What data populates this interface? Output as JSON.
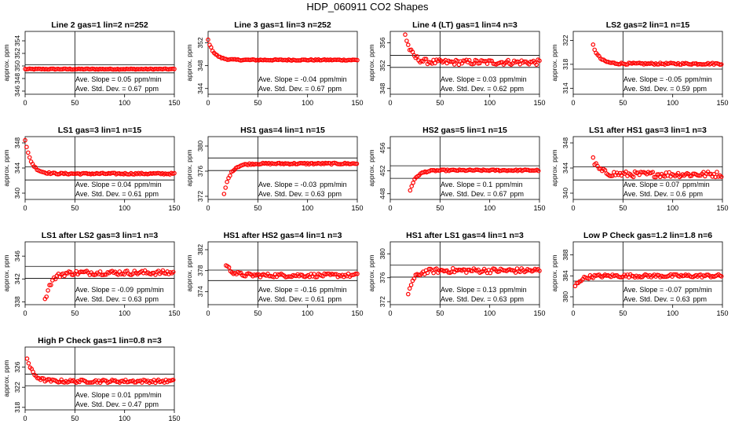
{
  "title": "HDP_060911  CO2 Shapes",
  "colors": {
    "points": "#ff0000",
    "axes": "#000000"
  },
  "chart_data": [
    {
      "type": "scatter",
      "title": "Line 2 gas=1 lin=2 n=252",
      "ylabel": "approx. ppm",
      "xlim": [
        0,
        150
      ],
      "ylim": [
        345.5,
        355.5
      ],
      "yticks": [
        346,
        348,
        350,
        352,
        354
      ],
      "xticks": [
        0,
        50,
        100,
        150
      ],
      "vline": 50,
      "hlines": [
        350.2,
        348.9
      ],
      "slope_label": "Ave. Slope = ",
      "slope": "0.05",
      "slope_unit": "ppm/min",
      "std_label": "Ave. Std. Dev. = ",
      "std": "0.67",
      "std_unit": "ppm",
      "x_start": 0,
      "series": [
        {
          "name": "",
          "start": 349.5,
          "plateau": 349.5,
          "noise": 0.07
        }
      ]
    },
    {
      "type": "scatter",
      "title": "Line 3 gas=1 lin=3 n=252",
      "ylabel": "approx. ppm",
      "xlim": [
        0,
        150
      ],
      "ylim": [
        343,
        354
      ],
      "yticks": [
        344,
        348,
        352
      ],
      "xticks": [
        0,
        50,
        100,
        150
      ],
      "vline": 50,
      "hlines": [],
      "slope_label": "Ave. Slope = ",
      "slope": "-0.04",
      "slope_unit": "ppm/min",
      "std_label": "Ave. Std. Dev. = ",
      "std": "0.67",
      "std_unit": "ppm",
      "x_start": 0,
      "series": [
        {
          "name": "",
          "start": 352.5,
          "plateau": 349.0,
          "noise": 0.1
        }
      ]
    },
    {
      "type": "scatter",
      "title": "Line 4 (LT) gas=1 lin=4 n=3",
      "ylabel": "approx. ppm",
      "xlim": [
        0,
        150
      ],
      "ylim": [
        347,
        358
      ],
      "yticks": [
        348,
        352,
        356
      ],
      "xticks": [
        0,
        50,
        100,
        150
      ],
      "vline": 50,
      "hlines": [
        353.8,
        351.7
      ],
      "slope_label": "Ave. Slope = ",
      "slope": "0.03",
      "slope_unit": "ppm/min",
      "std_label": "Ave. Std. Dev. = ",
      "std": "0.62",
      "std_unit": "ppm",
      "x_start": 15,
      "series": [
        {
          "name": "",
          "start": 357.5,
          "plateau": 352.6,
          "noise": 0.45
        }
      ]
    },
    {
      "type": "scatter",
      "title": "LS2 gas=2 lin=1 n=15",
      "ylabel": "approx. ppm",
      "xlim": [
        0,
        150
      ],
      "ylim": [
        313,
        323.5
      ],
      "yticks": [
        314,
        318,
        322
      ],
      "xticks": [
        0,
        50,
        100,
        150
      ],
      "vline": 50,
      "hlines": [
        317.2
      ],
      "slope_label": "Ave. Slope = ",
      "slope": "-0.05",
      "slope_unit": "ppm/min",
      "std_label": "Ave. Std. Dev. = ",
      "std": "0.59",
      "std_unit": "ppm",
      "x_start": 20,
      "series": [
        {
          "name": "",
          "start": 321.2,
          "plateau": 318.1,
          "noise": 0.15
        }
      ]
    },
    {
      "type": "scatter",
      "title": "LS1 gas=3 lin=1 n=15",
      "ylabel": "approx. ppm",
      "xlim": [
        0,
        150
      ],
      "ylim": [
        339,
        349
      ],
      "yticks": [
        340,
        344,
        348
      ],
      "xticks": [
        0,
        50,
        100,
        150
      ],
      "vline": 50,
      "hlines": [
        344.2,
        342.1
      ],
      "slope_label": "Ave. Slope = ",
      "slope": "0.04",
      "slope_unit": "ppm/min",
      "std_label": "Ave. Std. Dev. = ",
      "std": "0.61",
      "std_unit": "ppm",
      "x_start": 0,
      "series": [
        {
          "name": "",
          "start": 348.5,
          "plateau": 343.1,
          "noise": 0.12
        }
      ]
    },
    {
      "type": "scatter",
      "title": "HS1 gas=4 lin=1 n=15",
      "ylabel": "approx. ppm",
      "xlim": [
        0,
        150
      ],
      "ylim": [
        371.5,
        381.5
      ],
      "yticks": [
        372,
        376,
        380
      ],
      "xticks": [
        0,
        50,
        100,
        150
      ],
      "vline": 50,
      "hlines": [
        378.1,
        376.1
      ],
      "slope_label": "Ave. Slope = ",
      "slope": "-0.03",
      "slope_unit": "ppm/min",
      "std_label": "Ave. Std. Dev. = ",
      "std": "0.63",
      "std_unit": "ppm",
      "x_start": 16,
      "series": [
        {
          "name": "",
          "start": 372.3,
          "plateau": 377.2,
          "noise": 0.12
        }
      ]
    },
    {
      "type": "scatter",
      "title": "HS2 gas=5 lin=1 n=15",
      "ylabel": "approx. ppm",
      "xlim": [
        0,
        150
      ],
      "ylim": [
        447,
        458
      ],
      "yticks": [
        448,
        452,
        456
      ],
      "xticks": [
        0,
        50,
        100,
        150
      ],
      "vline": 50,
      "hlines": [
        452.9,
        450.7
      ],
      "slope_label": "Ave. Slope = ",
      "slope": "0.1",
      "slope_unit": "ppm/min",
      "std_label": "Ave. Std. Dev. = ",
      "std": "0.67",
      "std_unit": "ppm",
      "x_start": 20,
      "series": [
        {
          "name": "",
          "start": 448.6,
          "plateau": 452.1,
          "noise": 0.12
        }
      ]
    },
    {
      "type": "scatter",
      "title": "LS1 after HS1 gas=3 lin=1 n=3",
      "ylabel": "approx. ppm",
      "xlim": [
        0,
        150
      ],
      "ylim": [
        339,
        349
      ],
      "yticks": [
        340,
        344,
        348
      ],
      "xticks": [
        0,
        50,
        100,
        150
      ],
      "vline": 50,
      "hlines": [
        344.2,
        342.1
      ],
      "slope_label": "Ave. Slope = ",
      "slope": "0.07",
      "slope_unit": "ppm/min",
      "std_label": "Ave. Std. Dev. = ",
      "std": "0.6",
      "std_unit": "ppm",
      "x_start": 20,
      "series": [
        {
          "name": "",
          "start": 345.3,
          "plateau": 343.0,
          "noise": 0.45
        }
      ]
    },
    {
      "type": "scatter",
      "title": "LS1 after LS2 gas=3 lin=1 n=3",
      "ylabel": "approx. ppm",
      "xlim": [
        0,
        150
      ],
      "ylim": [
        337.5,
        348.5
      ],
      "yticks": [
        338,
        342,
        346
      ],
      "xticks": [
        0,
        50,
        100,
        150
      ],
      "vline": 50,
      "hlines": [
        344.2,
        342.1
      ],
      "slope_label": "Ave. Slope = ",
      "slope": "-0.09",
      "slope_unit": "ppm/min",
      "std_label": "Ave. Std. Dev. = ",
      "std": "0.63",
      "std_unit": "ppm",
      "x_start": 20,
      "series": [
        {
          "name": "",
          "start": 338.2,
          "plateau": 343.1,
          "noise": 0.4
        }
      ]
    },
    {
      "type": "scatter",
      "title": "HS1 after HS2 gas=4 lin=1 n=3",
      "ylabel": "approx. ppm",
      "xlim": [
        0,
        150
      ],
      "ylim": [
        371.5,
        383.5
      ],
      "yticks": [
        374,
        378,
        382
      ],
      "xticks": [
        0,
        50,
        100,
        150
      ],
      "vline": 50,
      "hlines": [
        378.1,
        376.1
      ],
      "slope_label": "Ave. Slope = ",
      "slope": "-0.16",
      "slope_unit": "ppm/min",
      "std_label": "Ave. Std. Dev. = ",
      "std": "0.61",
      "std_unit": "ppm",
      "x_start": 18,
      "series": [
        {
          "name": "",
          "start": 379.2,
          "plateau": 377.1,
          "noise": 0.35
        }
      ]
    },
    {
      "type": "scatter",
      "title": "HS1 after LS1 gas=4 lin=1 n=3",
      "ylabel": "approx. ppm",
      "xlim": [
        0,
        150
      ],
      "ylim": [
        371.5,
        382
      ],
      "yticks": [
        372,
        376,
        380
      ],
      "xticks": [
        0,
        50,
        100,
        150
      ],
      "vline": 50,
      "hlines": [
        378.1,
        376.1
      ],
      "slope_label": "Ave. Slope = ",
      "slope": "0.13",
      "slope_unit": "ppm/min",
      "std_label": "Ave. Std. Dev. = ",
      "std": "0.63",
      "std_unit": "ppm",
      "x_start": 18,
      "series": [
        {
          "name": "",
          "start": 373.4,
          "plateau": 377.2,
          "noise": 0.4
        }
      ]
    },
    {
      "type": "scatter",
      "title": "Low P Check gas=1.2 lin=1.8 n=6",
      "ylabel": "approx. ppm",
      "xlim": [
        0,
        150
      ],
      "ylim": [
        378.5,
        390.5
      ],
      "yticks": [
        380,
        384,
        388
      ],
      "xticks": [
        0,
        50,
        100,
        150
      ],
      "vline": 50,
      "hlines": [
        385.1,
        383.0
      ],
      "slope_label": "Ave. Slope = ",
      "slope": "-0.07",
      "slope_unit": "ppm/min",
      "std_label": "Ave. Std. Dev. = ",
      "std": "0.63",
      "std_unit": "ppm",
      "x_start": 2,
      "series": [
        {
          "name": "",
          "start": 382.0,
          "plateau": 384.0,
          "noise": 0.3
        }
      ]
    },
    {
      "type": "scatter",
      "title": "High P Check gas=1 lin=0.8 n=3",
      "ylabel": "approx. ppm",
      "xlim": [
        0,
        150
      ],
      "ylim": [
        317.5,
        330
      ],
      "yticks": [
        318,
        322,
        326
      ],
      "xticks": [
        0,
        50,
        100,
        150
      ],
      "vline": 50,
      "hlines": [
        324.6,
        322.3
      ],
      "slope_label": "Ave. Slope = ",
      "slope": "0.01",
      "slope_unit": "ppm/min",
      "std_label": "Ave. Std. Dev. = ",
      "std": "0.47",
      "std_unit": "ppm",
      "x_start": 2,
      "series": [
        {
          "name": "",
          "start": 327.8,
          "plateau": 323.2,
          "noise": 0.3
        }
      ]
    }
  ]
}
